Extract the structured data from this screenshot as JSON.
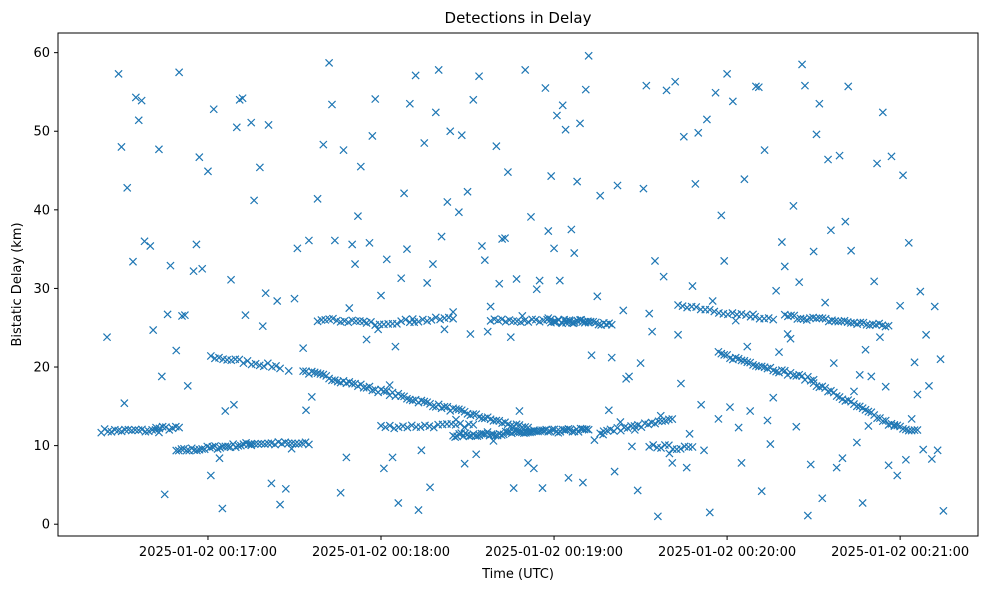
{
  "chart_data": {
    "type": "scatter",
    "title": "Detections in Delay",
    "xlabel": "Time (UTC)",
    "ylabel": "Bistatic Delay (km)",
    "xlim_seconds": [
      -52,
      267
    ],
    "x_time_origin": "2025-01-02 00:17:00",
    "ylim": [
      -1.5,
      62.5
    ],
    "x_ticks": [
      {
        "value": 0,
        "label": "2025-01-02 00:17:00"
      },
      {
        "value": 60,
        "label": "2025-01-02 00:18:00"
      },
      {
        "value": 120,
        "label": "2025-01-02 00:19:00"
      },
      {
        "value": 180,
        "label": "2025-01-02 00:20:00"
      },
      {
        "value": 240,
        "label": "2025-01-02 00:21:00"
      }
    ],
    "y_ticks": [
      0,
      10,
      20,
      30,
      40,
      50,
      60
    ],
    "grid": false,
    "marker": "x",
    "color": "#1f77b4",
    "tracks": [
      {
        "t_start": -37,
        "t_end": -17,
        "y_start": 11.9,
        "y_end": 11.9,
        "step": 1.2
      },
      {
        "t_start": -18,
        "t_end": -10,
        "y_start": 12.2,
        "y_end": 12.2,
        "step": 1.2
      },
      {
        "t_start": -11,
        "t_end": 15,
        "y_start": 9.3,
        "y_end": 10.2,
        "step": 0.9
      },
      {
        "t_start": 15,
        "t_end": 35,
        "y_start": 10.3,
        "y_end": 10.2,
        "step": 1.2
      },
      {
        "t_start": 1,
        "t_end": 25,
        "y_start": 21.3,
        "y_end": 20.0,
        "step": 1.4
      },
      {
        "t_start": 33,
        "t_end": 113,
        "y_start": 19.5,
        "y_end": 11.9,
        "step": 1.0
      },
      {
        "t_start": 38,
        "t_end": 54,
        "y_start": 26.0,
        "y_end": 25.8,
        "step": 1.3
      },
      {
        "t_start": 60,
        "t_end": 92,
        "y_start": 12.4,
        "y_end": 12.6,
        "step": 1.5
      },
      {
        "t_start": 55,
        "t_end": 85,
        "y_start": 25.5,
        "y_end": 26.2,
        "step": 1.5
      },
      {
        "t_start": 85,
        "t_end": 132,
        "y_start": 11.3,
        "y_end": 12.0,
        "step": 0.7
      },
      {
        "t_start": 98,
        "t_end": 132,
        "y_start": 25.9,
        "y_end": 25.8,
        "step": 1.3
      },
      {
        "t_start": 118,
        "t_end": 140,
        "y_start": 26.0,
        "y_end": 25.5,
        "step": 0.9
      },
      {
        "t_start": 136,
        "t_end": 161,
        "y_start": 11.7,
        "y_end": 13.2,
        "step": 1.2
      },
      {
        "t_start": 153,
        "t_end": 168,
        "y_start": 10.0,
        "y_end": 9.6,
        "step": 1.4
      },
      {
        "t_start": 163,
        "t_end": 196,
        "y_start": 28.0,
        "y_end": 25.9,
        "step": 1.6
      },
      {
        "t_start": 177,
        "t_end": 210,
        "y_start": 21.7,
        "y_end": 18.3,
        "step": 1.0
      },
      {
        "t_start": 210,
        "t_end": 238,
        "y_start": 18.0,
        "y_end": 12.4,
        "step": 1.0
      },
      {
        "t_start": 200,
        "t_end": 236,
        "y_start": 26.5,
        "y_end": 25.2,
        "step": 1.1
      },
      {
        "t_start": 238,
        "t_end": 246,
        "y_start": 12.6,
        "y_end": 11.8,
        "step": 1.0
      }
    ],
    "clutter_points": [
      [
        -35,
        23.8
      ],
      [
        -31,
        57.3
      ],
      [
        -29,
        15.4
      ],
      [
        -28,
        42.8
      ],
      [
        -24,
        51.4
      ],
      [
        -23,
        53.9
      ],
      [
        -20,
        35.4
      ],
      [
        -17,
        47.7
      ],
      [
        -15,
        3.8
      ],
      [
        -13,
        32.9
      ],
      [
        -11,
        22.1
      ],
      [
        -10,
        57.5
      ],
      [
        -8,
        26.6
      ],
      [
        -5,
        32.2
      ],
      [
        -4,
        35.6
      ],
      [
        -3,
        46.7
      ],
      [
        -2,
        32.5
      ],
      [
        0,
        44.9
      ],
      [
        2,
        52.8
      ],
      [
        5,
        2.0
      ],
      [
        8,
        31.1
      ],
      [
        10,
        50.5
      ],
      [
        12,
        54.2
      ],
      [
        15,
        51.1
      ],
      [
        18,
        45.4
      ],
      [
        20,
        29.4
      ],
      [
        22,
        5.2
      ],
      [
        25,
        2.5
      ],
      [
        28,
        19.5
      ],
      [
        30,
        28.7
      ],
      [
        33,
        22.4
      ],
      [
        35,
        36.1
      ],
      [
        38,
        41.4
      ],
      [
        40,
        48.3
      ],
      [
        42,
        58.7
      ],
      [
        43,
        53.4
      ],
      [
        46,
        4.0
      ],
      [
        47,
        47.6
      ],
      [
        49,
        27.5
      ],
      [
        50,
        35.6
      ],
      [
        52,
        39.2
      ],
      [
        53,
        45.5
      ],
      [
        55,
        23.5
      ],
      [
        57,
        49.4
      ],
      [
        58,
        54.1
      ],
      [
        60,
        29.1
      ],
      [
        62,
        33.7
      ],
      [
        64,
        8.5
      ],
      [
        66,
        2.7
      ],
      [
        68,
        42.1
      ],
      [
        70,
        53.5
      ],
      [
        72,
        57.1
      ],
      [
        73,
        1.8
      ],
      [
        75,
        48.5
      ],
      [
        77,
        4.7
      ],
      [
        78,
        33.1
      ],
      [
        79,
        52.4
      ],
      [
        80,
        57.8
      ],
      [
        82,
        24.8
      ],
      [
        84,
        50.0
      ],
      [
        86,
        13.3
      ],
      [
        87,
        39.7
      ],
      [
        89,
        7.7
      ],
      [
        90,
        42.3
      ],
      [
        92,
        54.0
      ],
      [
        94,
        57.0
      ],
      [
        95,
        35.4
      ],
      [
        96,
        33.6
      ],
      [
        98,
        27.7
      ],
      [
        100,
        48.1
      ],
      [
        102,
        36.3
      ],
      [
        104,
        44.8
      ],
      [
        106,
        4.6
      ],
      [
        107,
        31.2
      ],
      [
        108,
        14.4
      ],
      [
        110,
        57.8
      ],
      [
        112,
        39.1
      ],
      [
        113,
        7.1
      ],
      [
        115,
        31.0
      ],
      [
        117,
        55.5
      ],
      [
        118,
        37.3
      ],
      [
        119,
        44.3
      ],
      [
        120,
        35.1
      ],
      [
        121,
        52.0
      ],
      [
        123,
        53.3
      ],
      [
        124,
        50.2
      ],
      [
        126,
        37.5
      ],
      [
        128,
        43.6
      ],
      [
        129,
        51.0
      ],
      [
        130,
        5.3
      ],
      [
        131,
        55.3
      ],
      [
        132,
        59.6
      ],
      [
        134,
        10.7
      ],
      [
        136,
        41.8
      ],
      [
        140,
        21.2
      ],
      [
        141,
        6.7
      ],
      [
        142,
        43.1
      ],
      [
        144,
        27.2
      ],
      [
        146,
        18.8
      ],
      [
        148,
        12.0
      ],
      [
        150,
        20.5
      ],
      [
        152,
        55.8
      ],
      [
        153,
        26.8
      ],
      [
        154,
        24.5
      ],
      [
        155,
        33.5
      ],
      [
        156,
        1.0
      ],
      [
        158,
        31.5
      ],
      [
        159,
        55.2
      ],
      [
        160,
        9.0
      ],
      [
        161,
        7.8
      ],
      [
        162,
        56.3
      ],
      [
        164,
        17.9
      ],
      [
        165,
        49.3
      ],
      [
        166,
        7.2
      ],
      [
        167,
        11.5
      ],
      [
        169,
        43.3
      ],
      [
        170,
        49.8
      ],
      [
        172,
        9.4
      ],
      [
        173,
        51.5
      ],
      [
        174,
        1.5
      ],
      [
        176,
        54.9
      ],
      [
        178,
        39.3
      ],
      [
        179,
        33.5
      ],
      [
        180,
        57.3
      ],
      [
        182,
        53.8
      ],
      [
        183,
        25.9
      ],
      [
        184,
        12.3
      ],
      [
        185,
        7.8
      ],
      [
        186,
        43.9
      ],
      [
        188,
        14.4
      ],
      [
        190,
        55.7
      ],
      [
        191,
        55.6
      ],
      [
        192,
        4.2
      ],
      [
        193,
        47.6
      ],
      [
        195,
        10.2
      ],
      [
        196,
        16.1
      ],
      [
        198,
        21.9
      ],
      [
        199,
        35.9
      ],
      [
        200,
        32.8
      ],
      [
        202,
        23.6
      ],
      [
        203,
        40.5
      ],
      [
        204,
        12.4
      ],
      [
        206,
        58.5
      ],
      [
        207,
        55.8
      ],
      [
        208,
        1.1
      ],
      [
        209,
        7.6
      ],
      [
        210,
        34.7
      ],
      [
        211,
        49.6
      ],
      [
        212,
        53.5
      ],
      [
        213,
        3.3
      ],
      [
        215,
        46.4
      ],
      [
        216,
        37.4
      ],
      [
        217,
        20.5
      ],
      [
        218,
        7.2
      ],
      [
        219,
        46.9
      ],
      [
        220,
        8.4
      ],
      [
        221,
        38.5
      ],
      [
        222,
        55.7
      ],
      [
        223,
        34.8
      ],
      [
        224,
        16.9
      ],
      [
        226,
        19.0
      ],
      [
        227,
        2.7
      ],
      [
        229,
        12.5
      ],
      [
        230,
        18.8
      ],
      [
        232,
        45.9
      ],
      [
        233,
        23.8
      ],
      [
        234,
        52.4
      ],
      [
        235,
        17.5
      ],
      [
        237,
        46.8
      ],
      [
        239,
        6.2
      ],
      [
        240,
        27.8
      ],
      [
        241,
        44.4
      ],
      [
        242,
        8.2
      ],
      [
        243,
        35.8
      ],
      [
        245,
        20.6
      ],
      [
        246,
        16.5
      ],
      [
        248,
        9.5
      ],
      [
        249,
        24.1
      ],
      [
        250,
        17.6
      ],
      [
        251,
        8.3
      ],
      [
        252,
        27.7
      ],
      [
        254,
        21.0
      ],
      [
        255,
        1.7
      ],
      [
        253,
        9.4
      ],
      [
        -30,
        48.0
      ],
      [
        -26,
        33.4
      ],
      [
        -25,
        54.3
      ],
      [
        -22,
        36.0
      ],
      [
        -19,
        24.7
      ],
      [
        -16,
        18.8
      ],
      [
        -14,
        26.7
      ],
      [
        -9,
        26.5
      ],
      [
        -7,
        17.6
      ],
      [
        1,
        6.2
      ],
      [
        4,
        8.4
      ],
      [
        6,
        14.4
      ],
      [
        9,
        15.2
      ],
      [
        11,
        54.0
      ],
      [
        13,
        26.6
      ],
      [
        16,
        41.2
      ],
      [
        19,
        25.2
      ],
      [
        21,
        50.8
      ],
      [
        24,
        28.4
      ],
      [
        27,
        4.5
      ],
      [
        29,
        9.6
      ],
      [
        31,
        35.1
      ],
      [
        34,
        14.5
      ],
      [
        36,
        16.2
      ],
      [
        44,
        36.1
      ],
      [
        48,
        8.5
      ],
      [
        51,
        33.1
      ],
      [
        56,
        35.8
      ],
      [
        59,
        24.8
      ],
      [
        61,
        7.1
      ],
      [
        63,
        17.7
      ],
      [
        65,
        22.6
      ],
      [
        67,
        31.3
      ],
      [
        69,
        35.0
      ],
      [
        71,
        26.1
      ],
      [
        74,
        9.4
      ],
      [
        76,
        30.7
      ],
      [
        81,
        36.6
      ],
      [
        83,
        41.0
      ],
      [
        85,
        27.0
      ],
      [
        88,
        49.5
      ],
      [
        91,
        24.2
      ],
      [
        93,
        8.9
      ],
      [
        97,
        24.5
      ],
      [
        99,
        10.6
      ],
      [
        101,
        30.6
      ],
      [
        103,
        36.4
      ],
      [
        105,
        23.8
      ],
      [
        109,
        26.5
      ],
      [
        111,
        7.8
      ],
      [
        114,
        29.9
      ],
      [
        116,
        4.6
      ],
      [
        122,
        31.0
      ],
      [
        125,
        5.9
      ],
      [
        127,
        34.5
      ],
      [
        133,
        21.5
      ],
      [
        135,
        29.0
      ],
      [
        137,
        11.4
      ],
      [
        139,
        14.5
      ],
      [
        143,
        13.0
      ],
      [
        145,
        18.5
      ],
      [
        147,
        9.9
      ],
      [
        149,
        4.3
      ],
      [
        151,
        42.7
      ],
      [
        157,
        13.8
      ],
      [
        163,
        24.1
      ],
      [
        168,
        30.3
      ],
      [
        171,
        15.2
      ],
      [
        175,
        28.4
      ],
      [
        177,
        13.4
      ],
      [
        181,
        14.9
      ],
      [
        187,
        22.6
      ],
      [
        189,
        26.7
      ],
      [
        194,
        13.2
      ],
      [
        197,
        29.7
      ],
      [
        201,
        24.2
      ],
      [
        205,
        30.8
      ],
      [
        214,
        28.2
      ],
      [
        225,
        10.4
      ],
      [
        228,
        22.2
      ],
      [
        231,
        30.9
      ],
      [
        236,
        7.5
      ],
      [
        244,
        13.4
      ],
      [
        247,
        29.6
      ]
    ]
  }
}
